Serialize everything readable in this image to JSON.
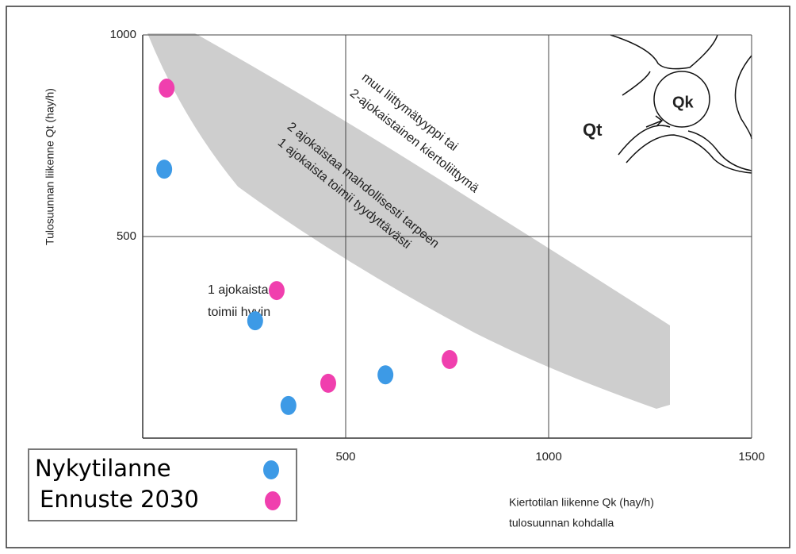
{
  "chart_data": {
    "type": "scatter",
    "y_label": "Tulosuunnan liikenne Qt  (hay/h)",
    "x_label": "Kiertotilan liikenne Qk  (hay/h)",
    "x_label_2": "tulosuunnan kohdalla",
    "xlim": [
      0,
      1500
    ],
    "ylim": [
      0,
      1000
    ],
    "xticks": [
      500,
      1000,
      1500
    ],
    "yticks": [
      500,
      1000
    ],
    "grid": true,
    "series": [
      {
        "name": "Nykytilanne",
        "color": "#3d9ae6",
        "x": [
          53,
          277,
          359,
          598
        ],
        "values": [
          667,
          291,
          81,
          157
        ]
      },
      {
        "name": "Ennuste 2030",
        "color": "#f03fae",
        "x": [
          59,
          330,
          457,
          756
        ],
        "values": [
          868,
          366,
          136,
          195
        ]
      }
    ],
    "annotations": [
      "muu liittymätyyppi tai",
      "2-ajokaistainen kiertoliittymä",
      "2 ajokaistaa mahdollisesti tarpeen",
      "1 ajokaista toimii tyydyttävästi",
      "1 ajokaista",
      "toimii hyvin"
    ],
    "diagram_labels": [
      "Qt",
      "Qk"
    ]
  }
}
